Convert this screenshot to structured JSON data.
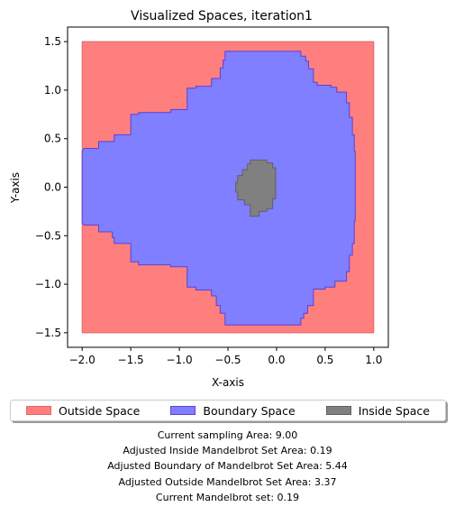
{
  "chart_data": {
    "type": "area",
    "title": "Visualized Spaces, iteration1",
    "xlabel": "X-axis",
    "ylabel": "Y-axis",
    "xlim": [
      -2.15,
      1.15
    ],
    "ylim": [
      -1.65,
      1.65
    ],
    "xticks": [
      -2.0,
      -1.5,
      -1.0,
      -0.5,
      0.0,
      0.5,
      1.0
    ],
    "xtick_labels": [
      "−2.0",
      "−1.5",
      "−1.0",
      "−0.5",
      "0.0",
      "0.5",
      "1.0"
    ],
    "yticks": [
      -1.5,
      -1.0,
      -0.5,
      0.0,
      0.5,
      1.0,
      1.5
    ],
    "ytick_labels": [
      "−1.5",
      "−1.0",
      "−0.5",
      "0.0",
      "0.5",
      "1.0",
      "1.5"
    ],
    "grid": false,
    "series": [
      {
        "name": "Outside Space",
        "color": "#ff7f7f",
        "edge": "#e06666",
        "polygon": [
          [
            -2.0,
            -1.5
          ],
          [
            1.0,
            -1.5
          ],
          [
            1.0,
            1.5
          ],
          [
            -2.0,
            1.5
          ]
        ]
      },
      {
        "name": "Boundary Space",
        "color": "#7f7fff",
        "edge": "#6040d0",
        "polygon": [
          [
            -2.0,
            0.37
          ],
          [
            -1.98,
            0.4
          ],
          [
            -1.83,
            0.4
          ],
          [
            -1.83,
            0.47
          ],
          [
            -1.67,
            0.47
          ],
          [
            -1.67,
            0.54
          ],
          [
            -1.5,
            0.54
          ],
          [
            -1.5,
            0.75
          ],
          [
            -1.42,
            0.75
          ],
          [
            -1.42,
            0.77
          ],
          [
            -1.33,
            0.77
          ],
          [
            -1.09,
            0.77
          ],
          [
            -1.09,
            0.8
          ],
          [
            -0.92,
            0.8
          ],
          [
            -0.92,
            1.02
          ],
          [
            -0.83,
            1.02
          ],
          [
            -0.83,
            1.04
          ],
          [
            -0.75,
            1.04
          ],
          [
            -0.67,
            1.04
          ],
          [
            -0.67,
            1.12
          ],
          [
            -0.58,
            1.12
          ],
          [
            -0.58,
            1.23
          ],
          [
            -0.55,
            1.23
          ],
          [
            -0.55,
            1.31
          ],
          [
            -0.53,
            1.31
          ],
          [
            -0.53,
            1.4
          ],
          [
            -0.27,
            1.4
          ],
          [
            0.25,
            1.4
          ],
          [
            0.25,
            1.35
          ],
          [
            0.3,
            1.35
          ],
          [
            0.3,
            1.3
          ],
          [
            0.33,
            1.3
          ],
          [
            0.33,
            1.22
          ],
          [
            0.38,
            1.22
          ],
          [
            0.38,
            1.08
          ],
          [
            0.42,
            1.08
          ],
          [
            0.42,
            1.05
          ],
          [
            0.56,
            1.05
          ],
          [
            0.56,
            1.03
          ],
          [
            0.62,
            1.03
          ],
          [
            0.62,
            0.98
          ],
          [
            0.72,
            0.98
          ],
          [
            0.72,
            0.87
          ],
          [
            0.75,
            0.87
          ],
          [
            0.75,
            0.72
          ],
          [
            0.78,
            0.72
          ],
          [
            0.78,
            0.54
          ],
          [
            0.8,
            0.54
          ],
          [
            0.8,
            0.37
          ],
          [
            0.81,
            0.37
          ],
          [
            0.81,
            0.0
          ],
          [
            0.81,
            -0.35
          ],
          [
            0.8,
            -0.35
          ],
          [
            0.8,
            -0.58
          ],
          [
            0.78,
            -0.58
          ],
          [
            0.78,
            -0.7
          ],
          [
            0.75,
            -0.7
          ],
          [
            0.75,
            -0.87
          ],
          [
            0.72,
            -0.87
          ],
          [
            0.72,
            -0.97
          ],
          [
            0.6,
            -0.97
          ],
          [
            0.6,
            -1.03
          ],
          [
            0.5,
            -1.03
          ],
          [
            0.5,
            -1.05
          ],
          [
            0.38,
            -1.05
          ],
          [
            0.38,
            -1.22
          ],
          [
            0.32,
            -1.22
          ],
          [
            0.32,
            -1.3
          ],
          [
            0.28,
            -1.3
          ],
          [
            0.28,
            -1.35
          ],
          [
            0.25,
            -1.35
          ],
          [
            0.25,
            -1.42
          ],
          [
            -0.25,
            -1.42
          ],
          [
            -0.53,
            -1.42
          ],
          [
            -0.53,
            -1.3
          ],
          [
            -0.58,
            -1.3
          ],
          [
            -0.58,
            -1.22
          ],
          [
            -0.62,
            -1.22
          ],
          [
            -0.62,
            -1.12
          ],
          [
            -0.67,
            -1.12
          ],
          [
            -0.67,
            -1.06
          ],
          [
            -0.83,
            -1.06
          ],
          [
            -0.83,
            -1.03
          ],
          [
            -0.92,
            -1.03
          ],
          [
            -0.92,
            -0.82
          ],
          [
            -1.09,
            -0.82
          ],
          [
            -1.09,
            -0.8
          ],
          [
            -1.33,
            -0.8
          ],
          [
            -1.42,
            -0.8
          ],
          [
            -1.42,
            -0.77
          ],
          [
            -1.5,
            -0.77
          ],
          [
            -1.5,
            -0.58
          ],
          [
            -1.67,
            -0.58
          ],
          [
            -1.67,
            -0.52
          ],
          [
            -1.69,
            -0.52
          ],
          [
            -1.69,
            -0.46
          ],
          [
            -1.83,
            -0.46
          ],
          [
            -1.83,
            -0.39
          ],
          [
            -1.98,
            -0.39
          ],
          [
            -2.0,
            -0.37
          ]
        ]
      },
      {
        "name": "Inside Space",
        "color": "#808080",
        "edge": "#606060",
        "polygon": [
          [
            -0.27,
            0.28
          ],
          [
            -0.1,
            0.28
          ],
          [
            -0.1,
            0.25
          ],
          [
            -0.04,
            0.25
          ],
          [
            -0.04,
            0.2
          ],
          [
            -0.01,
            0.2
          ],
          [
            -0.01,
            -0.12
          ],
          [
            -0.04,
            -0.12
          ],
          [
            -0.04,
            -0.22
          ],
          [
            -0.1,
            -0.22
          ],
          [
            -0.1,
            -0.25
          ],
          [
            -0.18,
            -0.25
          ],
          [
            -0.18,
            -0.3
          ],
          [
            -0.27,
            -0.3
          ],
          [
            -0.27,
            -0.18
          ],
          [
            -0.33,
            -0.18
          ],
          [
            -0.33,
            -0.13
          ],
          [
            -0.4,
            -0.13
          ],
          [
            -0.4,
            -0.05
          ],
          [
            -0.42,
            -0.05
          ],
          [
            -0.42,
            0.05
          ],
          [
            -0.4,
            0.05
          ],
          [
            -0.4,
            0.12
          ],
          [
            -0.35,
            0.12
          ],
          [
            -0.35,
            0.18
          ],
          [
            -0.3,
            0.18
          ],
          [
            -0.3,
            0.24
          ],
          [
            -0.27,
            0.24
          ]
        ]
      }
    ],
    "legend": {
      "placement": "below",
      "entries": [
        {
          "label": "Outside Space",
          "color": "#ff7f7f"
        },
        {
          "label": "Boundary Space",
          "color": "#7f7fff"
        },
        {
          "label": "Inside Space",
          "color": "#808080"
        }
      ]
    },
    "annotations": [
      "Current sampling Area: 9.00",
      "Adjusted Inside Mandelbrot Set Area: 0.19",
      "Adjusted Boundary of Mandelbrot Set Area: 5.44",
      "Adjusted Outside Mandelbrot Set Area: 3.37",
      "Current Mandelbrot set: 0.19"
    ]
  }
}
